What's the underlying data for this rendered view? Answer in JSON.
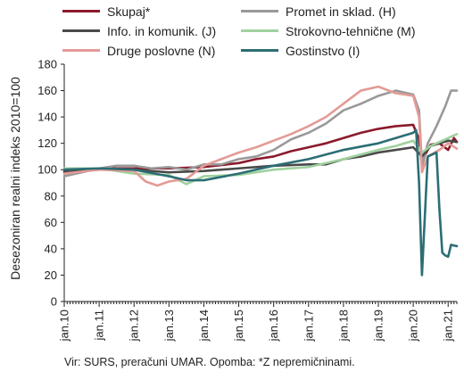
{
  "chart_data": {
    "type": "line",
    "title": "",
    "xlabel": "",
    "ylabel": "Desezoniran realni indeks 2010=100",
    "ylim": [
      0,
      180
    ],
    "yticks": [
      0,
      20,
      40,
      60,
      80,
      100,
      120,
      140,
      160,
      180
    ],
    "x_ticklabels": [
      "jan.10",
      "jan.11",
      "jan.12",
      "jan.13",
      "jan.14",
      "jan.15",
      "jan.16",
      "jan.17",
      "jan.18",
      "jan.19",
      "jan.20",
      "jan.21"
    ],
    "x_start": "2010-01",
    "x_end": "2021-04",
    "series": [
      {
        "name": "Skupaj*",
        "color": "#8b1a2b",
        "points": [
          [
            "2010-01",
            99
          ],
          [
            "2011-01",
            101
          ],
          [
            "2012-01",
            101
          ],
          [
            "2013-01",
            101
          ],
          [
            "2014-01",
            102
          ],
          [
            "2015-01",
            105
          ],
          [
            "2015-07",
            108
          ],
          [
            "2016-01",
            110
          ],
          [
            "2016-07",
            114
          ],
          [
            "2017-01",
            117
          ],
          [
            "2017-07",
            120
          ],
          [
            "2018-01",
            124
          ],
          [
            "2018-07",
            128
          ],
          [
            "2019-01",
            131
          ],
          [
            "2019-07",
            133
          ],
          [
            "2020-01",
            134
          ],
          [
            "2020-03",
            123
          ],
          [
            "2020-04",
            103
          ],
          [
            "2020-05",
            111
          ],
          [
            "2020-07",
            119
          ],
          [
            "2020-10",
            120
          ],
          [
            "2021-01",
            115
          ],
          [
            "2021-03",
            124
          ],
          [
            "2021-04",
            121
          ]
        ]
      },
      {
        "name": "Promet in sklad. (H)",
        "color": "#999999",
        "points": [
          [
            "2010-01",
            95
          ],
          [
            "2010-07",
            98
          ],
          [
            "2011-01",
            101
          ],
          [
            "2011-07",
            103
          ],
          [
            "2012-01",
            103
          ],
          [
            "2012-07",
            101
          ],
          [
            "2013-01",
            102
          ],
          [
            "2013-07",
            100
          ],
          [
            "2014-01",
            104
          ],
          [
            "2014-07",
            104
          ],
          [
            "2015-01",
            108
          ],
          [
            "2015-07",
            110
          ],
          [
            "2016-01",
            115
          ],
          [
            "2016-07",
            123
          ],
          [
            "2017-01",
            128
          ],
          [
            "2017-07",
            135
          ],
          [
            "2018-01",
            145
          ],
          [
            "2018-07",
            150
          ],
          [
            "2019-01",
            156
          ],
          [
            "2019-07",
            160
          ],
          [
            "2020-01",
            157
          ],
          [
            "2020-03",
            145
          ],
          [
            "2020-04",
            103
          ],
          [
            "2020-06",
            120
          ],
          [
            "2020-09",
            133
          ],
          [
            "2020-12",
            148
          ],
          [
            "2021-02",
            160
          ],
          [
            "2021-04",
            160
          ]
        ]
      },
      {
        "name": "Info. in komunik. (J)",
        "color": "#4a4a4a",
        "points": [
          [
            "2010-01",
            98
          ],
          [
            "2011-01",
            100
          ],
          [
            "2012-01",
            100
          ],
          [
            "2013-01",
            98
          ],
          [
            "2014-01",
            99
          ],
          [
            "2015-01",
            101
          ],
          [
            "2016-01",
            103
          ],
          [
            "2017-01",
            104
          ],
          [
            "2017-07",
            104
          ],
          [
            "2018-01",
            108
          ],
          [
            "2018-07",
            110
          ],
          [
            "2019-01",
            113
          ],
          [
            "2019-07",
            115
          ],
          [
            "2020-01",
            117
          ],
          [
            "2020-04",
            110
          ],
          [
            "2020-07",
            118
          ],
          [
            "2021-01",
            122
          ],
          [
            "2021-04",
            121
          ]
        ]
      },
      {
        "name": "Strokovno-tehnične (M)",
        "color": "#9fd19f",
        "points": [
          [
            "2010-01",
            101
          ],
          [
            "2011-01",
            101
          ],
          [
            "2012-01",
            97
          ],
          [
            "2013-01",
            96
          ],
          [
            "2013-07",
            89
          ],
          [
            "2014-01",
            95
          ],
          [
            "2015-01",
            96
          ],
          [
            "2016-01",
            100
          ],
          [
            "2017-01",
            102
          ],
          [
            "2018-01",
            108
          ],
          [
            "2019-01",
            115
          ],
          [
            "2019-07",
            118
          ],
          [
            "2020-01",
            122
          ],
          [
            "2020-04",
            113
          ],
          [
            "2020-07",
            118
          ],
          [
            "2021-01",
            124
          ],
          [
            "2021-04",
            127
          ]
        ]
      },
      {
        "name": "Druge poslovne (N)",
        "color": "#e39b96",
        "points": [
          [
            "2010-01",
            97
          ],
          [
            "2011-01",
            100
          ],
          [
            "2012-01",
            99
          ],
          [
            "2012-05",
            91
          ],
          [
            "2012-09",
            88
          ],
          [
            "2013-01",
            91
          ],
          [
            "2013-07",
            93
          ],
          [
            "2014-01",
            103
          ],
          [
            "2014-07",
            108
          ],
          [
            "2015-01",
            113
          ],
          [
            "2015-07",
            117
          ],
          [
            "2016-01",
            122
          ],
          [
            "2016-07",
            127
          ],
          [
            "2017-01",
            133
          ],
          [
            "2017-07",
            140
          ],
          [
            "2018-01",
            150
          ],
          [
            "2018-07",
            160
          ],
          [
            "2019-01",
            163
          ],
          [
            "2019-07",
            158
          ],
          [
            "2020-01",
            156
          ],
          [
            "2020-03",
            140
          ],
          [
            "2020-04",
            98
          ],
          [
            "2020-06",
            110
          ],
          [
            "2020-10",
            115
          ],
          [
            "2021-01",
            120
          ],
          [
            "2021-04",
            116
          ]
        ]
      },
      {
        "name": "Gostinstvo (I)",
        "color": "#2c6e75",
        "points": [
          [
            "2010-01",
            100
          ],
          [
            "2011-01",
            101
          ],
          [
            "2012-01",
            100
          ],
          [
            "2013-01",
            95
          ],
          [
            "2013-07",
            92
          ],
          [
            "2014-01",
            92
          ],
          [
            "2015-01",
            97
          ],
          [
            "2016-01",
            103
          ],
          [
            "2017-01",
            108
          ],
          [
            "2018-01",
            115
          ],
          [
            "2019-01",
            120
          ],
          [
            "2019-07",
            124
          ],
          [
            "2020-01",
            128
          ],
          [
            "2020-02",
            130
          ],
          [
            "2020-03",
            90
          ],
          [
            "2020-04",
            20
          ],
          [
            "2020-06",
            110
          ],
          [
            "2020-09",
            113
          ],
          [
            "2020-10",
            70
          ],
          [
            "2020-11",
            37
          ],
          [
            "2020-12",
            35
          ],
          [
            "2021-01",
            34
          ],
          [
            "2021-02",
            43
          ],
          [
            "2021-04",
            42
          ]
        ]
      }
    ]
  },
  "legend": {
    "items": [
      {
        "label": "Skupaj*",
        "color": "#8b1a2b"
      },
      {
        "label": "Promet in sklad. (H)",
        "color": "#999999"
      },
      {
        "label": "Info. in komunik. (J)",
        "color": "#4a4a4a"
      },
      {
        "label": "Strokovno-tehnične (M)",
        "color": "#9fd19f"
      },
      {
        "label": "Druge poslovne (N)",
        "color": "#e39b96"
      },
      {
        "label": "Gostinstvo (I)",
        "color": "#2c6e75"
      }
    ]
  },
  "source_note": "Vir: SURS, preračuni UMAR. Opomba: *Z nepremičninami."
}
